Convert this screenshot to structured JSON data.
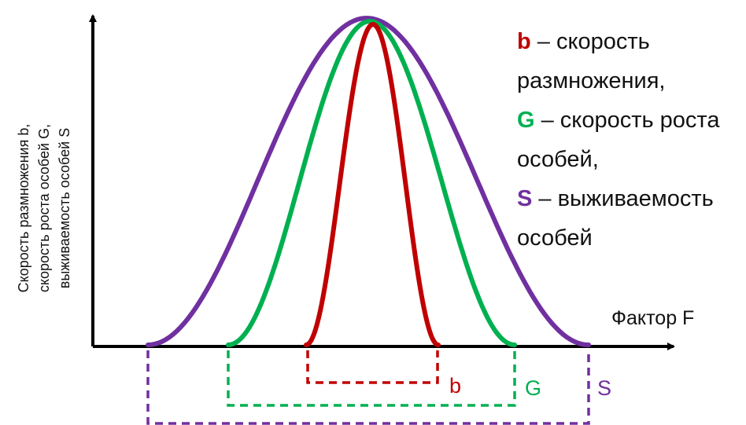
{
  "diagram": {
    "y_axis_label": [
      "Скорость размножения b,",
      "скорость роста особей G,",
      "выживаемость особей S"
    ],
    "x_axis_label": "Фактор F",
    "curves": [
      {
        "key": "S",
        "color": "#7030a0",
        "range_label": "S"
      },
      {
        "key": "G",
        "color": "#00b050",
        "range_label": "G"
      },
      {
        "key": "b",
        "color": "#c00000",
        "range_label": "b"
      }
    ],
    "legend": [
      {
        "key": "b",
        "color": "#c00000",
        "lines": [
          "– скорость",
          "размножения,"
        ]
      },
      {
        "key": "G",
        "color": "#00b050",
        "lines": [
          "– скорость роста",
          "особей,"
        ]
      },
      {
        "key": "S",
        "color": "#7030a0",
        "lines": [
          "– выживаемость",
          "особей"
        ]
      }
    ],
    "axis_color": "#000000"
  }
}
